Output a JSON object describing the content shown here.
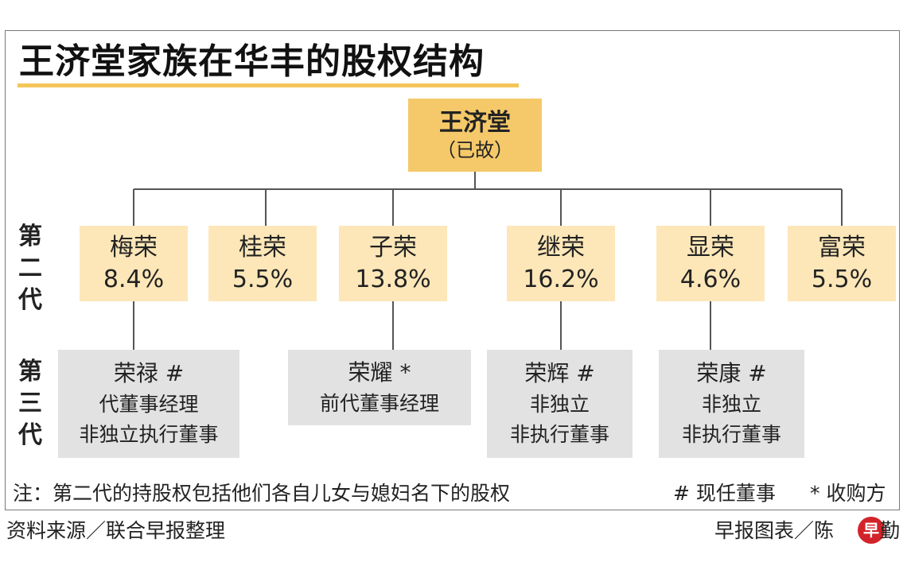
{
  "title": "王济堂家族在华丰的股权结构",
  "root": {
    "name": "王济堂",
    "note": "（已故）"
  },
  "gen2_label": [
    "第",
    "二",
    "代"
  ],
  "gen3_label": [
    "第",
    "三",
    "代"
  ],
  "generation2": [
    {
      "name": "梅荣",
      "share": "8.4%"
    },
    {
      "name": "桂荣",
      "share": "5.5%"
    },
    {
      "name": "子荣",
      "share": "13.8%"
    },
    {
      "name": "继荣",
      "share": "16.2%"
    },
    {
      "name": "显荣",
      "share": "4.6%"
    },
    {
      "name": "富荣",
      "share": "5.5%"
    }
  ],
  "generation3": [
    {
      "name": "荣禄 #",
      "lines": [
        "代董事经理",
        "非独立执行董事"
      ]
    },
    {
      "name": "荣耀 *",
      "lines": [
        "前代董事经理"
      ]
    },
    {
      "name": "荣辉 #",
      "lines": [
        "非独立",
        "非执行董事"
      ]
    },
    {
      "name": "荣康 #",
      "lines": [
        "非独立",
        "非执行董事"
      ]
    }
  ],
  "note": "注：第二代的持股权包括他们各自儿女与媳妇名下的股权",
  "legend": {
    "current_director": "# 现任董事",
    "acquirer": "* 收购方"
  },
  "source": "资料来源／联合早报整理",
  "credit": "早报图表／陈",
  "credit_tail": "勤",
  "logo_text": "早",
  "colors": {
    "root": "#f5c96a",
    "gen2": "#fde7b8",
    "gen3": "#e2e2e2",
    "accent": "#f5c55a",
    "logo": "#d3232a"
  }
}
